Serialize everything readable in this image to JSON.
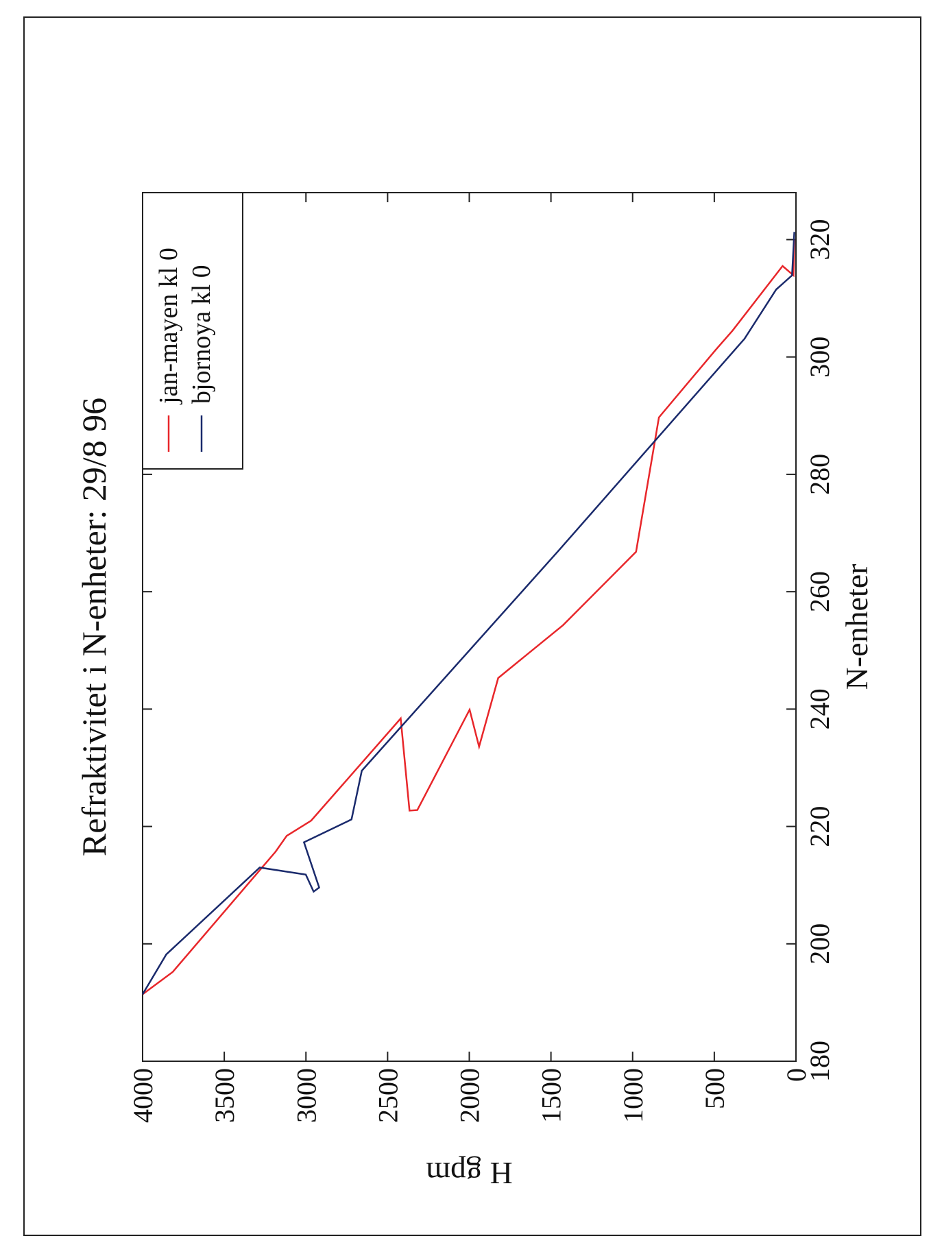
{
  "chart_data": {
    "type": "line",
    "title": "Refraktivitet i N-enheter: 29/8 96",
    "x_label": "N-enheter",
    "y_label": "H gpm",
    "xlim": [
      180,
      328
    ],
    "xticks": [
      180,
      200,
      220,
      240,
      260,
      280,
      300,
      320
    ],
    "ylim": [
      0,
      4000
    ],
    "yticks": [
      0,
      500,
      1000,
      1500,
      2000,
      2500,
      3000,
      3500,
      4000
    ],
    "legend_position": "upper right",
    "series": [
      {
        "name": "jan-mayen kl 0",
        "color": "#e8262a",
        "x": [
          191.4,
          195.2,
          215.7,
          218.4,
          221,
          238.4,
          222.7,
          222.8,
          239.9,
          233.6,
          245.3,
          254.3,
          266.8,
          289.7,
          301.1,
          304.5,
          315.5,
          313.9,
          320
        ],
        "values": [
          4000,
          3816,
          3186,
          3118,
          2968,
          2420,
          2366,
          2318,
          1998,
          1940,
          1823,
          1426,
          979,
          839,
          495,
          388,
          82,
          15,
          10
        ]
      },
      {
        "name": "bjornoya kl 0",
        "color": "#1a2a6c",
        "x": [
          191.4,
          198.2,
          213,
          211.8,
          208.9,
          209.6,
          217.3,
          221.2,
          229.5,
          267.1,
          303.1,
          311.5,
          313.9,
          321.3
        ],
        "values": [
          4000,
          3855,
          3283,
          3001,
          2953,
          2919,
          3012,
          2721,
          2658,
          1450,
          315,
          121,
          24,
          10
        ]
      }
    ]
  }
}
